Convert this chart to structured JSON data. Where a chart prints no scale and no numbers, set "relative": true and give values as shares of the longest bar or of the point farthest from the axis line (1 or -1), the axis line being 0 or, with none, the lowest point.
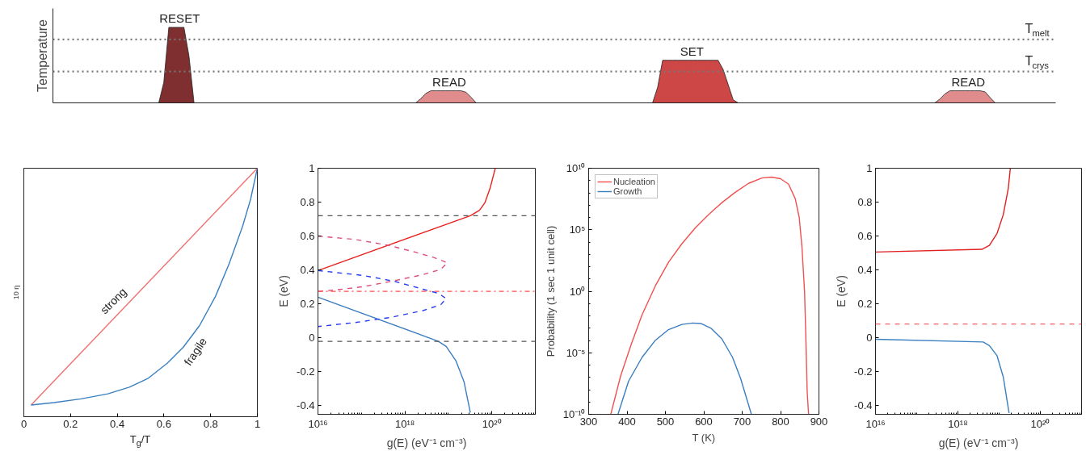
{
  "chart_data": [
    {
      "type": "area",
      "relative": true,
      "ylabel": "Temperature",
      "tick_labels": false,
      "categories": [
        null,
        null,
        null,
        null,
        null,
        null,
        null,
        null,
        null,
        null,
        null,
        null,
        null,
        null,
        null,
        null,
        null,
        null,
        null,
        null,
        null,
        null,
        null,
        null,
        null,
        null,
        null,
        null,
        null,
        null,
        null,
        null,
        null,
        null,
        null,
        null,
        null,
        null,
        null,
        null,
        null,
        null,
        null,
        null,
        null,
        null,
        null,
        null,
        null,
        null,
        null,
        null,
        null,
        null,
        null,
        null,
        null,
        null,
        null,
        null,
        null,
        null,
        null,
        null,
        null,
        null,
        null,
        null,
        null,
        null,
        null,
        null,
        null,
        null,
        null,
        null,
        null,
        null,
        null,
        null,
        null,
        null,
        null,
        null,
        null,
        null,
        null,
        null,
        null,
        null,
        null,
        null,
        null,
        null,
        null,
        null,
        null,
        null,
        null,
        null,
        null,
        null,
        null,
        null,
        null,
        null,
        null,
        null,
        null,
        null,
        null,
        null,
        null,
        null,
        null,
        null,
        null,
        null,
        null,
        null,
        null,
        null,
        null,
        null,
        null,
        null,
        null,
        null,
        null,
        null,
        null,
        null,
        null,
        null,
        null,
        null,
        null,
        null,
        null,
        null,
        null,
        null,
        null,
        null,
        null,
        null,
        null,
        null,
        null,
        null,
        null,
        null,
        null,
        null,
        null,
        null,
        null,
        null,
        null,
        null,
        null,
        null,
        null,
        null,
        null,
        null,
        null,
        null,
        null,
        null,
        null,
        null,
        null,
        null,
        null,
        null,
        null,
        null,
        null,
        null,
        null,
        null,
        null,
        null,
        null,
        null,
        null,
        null,
        null,
        null,
        null,
        null,
        null,
        null,
        null,
        null,
        null,
        null,
        null,
        null
      ],
      "series": [
        {
          "color": "#7f2f2f",
          "values": [
            null,
            null,
            null,
            null,
            null,
            null,
            null,
            null,
            null,
            null,
            null,
            null,
            null,
            null,
            null,
            null,
            null,
            null,
            null,
            null,
            null,
            0,
            0.27,
            1,
            1,
            1,
            1,
            0.62,
            0,
            null,
            null,
            null,
            null,
            null,
            null,
            null,
            null,
            null,
            null,
            null,
            null,
            null,
            null,
            null,
            null,
            null,
            null,
            null,
            null,
            null,
            null,
            null,
            null,
            null,
            null,
            null,
            null,
            null,
            null,
            null,
            null,
            null,
            null,
            null,
            null,
            null,
            null,
            null,
            null,
            null,
            null,
            null,
            null,
            null,
            null,
            null,
            null,
            null,
            null,
            null,
            null,
            null,
            null,
            null,
            null,
            null,
            null,
            null,
            null,
            null,
            null,
            null,
            null,
            null,
            null,
            null,
            null,
            null,
            null,
            null,
            null,
            null,
            null,
            null,
            null,
            null,
            null,
            null,
            null,
            null,
            null,
            null,
            null,
            null,
            null,
            null,
            null,
            null,
            null,
            null,
            null,
            null,
            null,
            null,
            null,
            null,
            null,
            null,
            null,
            null,
            null,
            null,
            null,
            null,
            null,
            null,
            null,
            null,
            null,
            null,
            null,
            null,
            null,
            null,
            null,
            null,
            null,
            null,
            null,
            null,
            null,
            null,
            null,
            null,
            null,
            null,
            null,
            null,
            null,
            null,
            null,
            null,
            null,
            null,
            null,
            null,
            null,
            null,
            null,
            null,
            null,
            null,
            null,
            null,
            null,
            null,
            null,
            null,
            null,
            null,
            null,
            null,
            null,
            null,
            null,
            null,
            null,
            null,
            null,
            null,
            null,
            null,
            null,
            null,
            null,
            null,
            null,
            null,
            null,
            null
          ]
        },
        {
          "color": "#e08c8c",
          "values": [
            null,
            null,
            null,
            null,
            null,
            null,
            null,
            null,
            null,
            null,
            null,
            null,
            null,
            null,
            null,
            null,
            null,
            null,
            null,
            null,
            null,
            null,
            null,
            null,
            null,
            null,
            null,
            null,
            null,
            null,
            null,
            null,
            null,
            null,
            null,
            null,
            null,
            null,
            null,
            null,
            null,
            null,
            null,
            null,
            null,
            null,
            null,
            null,
            null,
            null,
            null,
            null,
            null,
            null,
            null,
            null,
            null,
            null,
            null,
            null,
            null,
            null,
            null,
            null,
            null,
            null,
            null,
            null,
            null,
            null,
            null,
            null,
            0,
            0.056,
            0.125,
            0.16,
            0.16,
            0.16,
            0.16,
            0.16,
            0.16,
            0.16,
            0.14,
            0.073,
            0,
            null,
            null,
            null,
            null,
            null,
            null,
            null,
            null,
            null,
            null,
            null,
            null,
            null,
            null,
            null,
            null,
            null,
            null,
            null,
            null,
            null,
            null,
            null,
            null,
            null,
            null,
            null,
            null,
            null,
            null,
            null,
            null,
            null,
            null,
            null,
            null,
            null,
            null,
            null,
            null,
            null,
            null,
            null,
            null,
            null,
            null,
            null,
            null,
            null,
            null,
            null,
            null,
            null,
            null,
            null,
            null,
            null,
            null,
            null,
            null,
            null,
            null,
            null,
            null,
            null,
            null,
            null,
            null,
            null,
            null,
            null,
            null,
            null,
            null,
            null,
            null,
            null,
            null,
            null,
            null,
            null,
            null,
            null,
            null,
            null,
            null,
            null,
            null,
            null,
            null,
            null,
            null,
            null,
            null,
            null,
            null,
            null,
            null,
            null,
            null,
            null,
            null,
            null,
            null,
            null,
            null,
            null,
            null,
            null,
            null,
            null,
            null,
            null,
            null,
            null
          ]
        },
        {
          "color": "#cd4747",
          "values": [
            null,
            null,
            null,
            null,
            null,
            null,
            null,
            null,
            null,
            null,
            null,
            null,
            null,
            null,
            null,
            null,
            null,
            null,
            null,
            null,
            null,
            null,
            null,
            null,
            null,
            null,
            null,
            null,
            null,
            null,
            null,
            null,
            null,
            null,
            null,
            null,
            null,
            null,
            null,
            null,
            null,
            null,
            null,
            null,
            null,
            null,
            null,
            null,
            null,
            null,
            null,
            null,
            null,
            null,
            null,
            null,
            null,
            null,
            null,
            null,
            null,
            null,
            null,
            null,
            null,
            null,
            null,
            null,
            null,
            null,
            null,
            null,
            null,
            null,
            null,
            null,
            null,
            null,
            null,
            null,
            null,
            null,
            null,
            null,
            null,
            null,
            null,
            null,
            null,
            null,
            null,
            null,
            null,
            null,
            null,
            null,
            null,
            null,
            null,
            null,
            null,
            null,
            null,
            null,
            null,
            null,
            null,
            null,
            null,
            null,
            null,
            null,
            null,
            null,
            null,
            null,
            null,
            null,
            null,
            0,
            0.205,
            0.564,
            0.564,
            0.564,
            0.564,
            0.564,
            0.564,
            0.564,
            0.564,
            0.564,
            0.564,
            0.564,
            0.564,
            0.443,
            0.242,
            0.04,
            0,
            null,
            null,
            null,
            null,
            null,
            null,
            null,
            null,
            null,
            null,
            null,
            null,
            null,
            null,
            null,
            null,
            null,
            null,
            null,
            null,
            null,
            null,
            null,
            null,
            null,
            null,
            null,
            null,
            null,
            null,
            null,
            null,
            null,
            null,
            null,
            null,
            null,
            null,
            null,
            null,
            null,
            null,
            null,
            null,
            null,
            null,
            null,
            null,
            null,
            null,
            null,
            null,
            null,
            null,
            null,
            null,
            null,
            null,
            null,
            null,
            null,
            null,
            null
          ]
        },
        {
          "color": "#e08c8c",
          "values": [
            null,
            null,
            null,
            null,
            null,
            null,
            null,
            null,
            null,
            null,
            null,
            null,
            null,
            null,
            null,
            null,
            null,
            null,
            null,
            null,
            null,
            null,
            null,
            null,
            null,
            null,
            null,
            null,
            null,
            null,
            null,
            null,
            null,
            null,
            null,
            null,
            null,
            null,
            null,
            null,
            null,
            null,
            null,
            null,
            null,
            null,
            null,
            null,
            null,
            null,
            null,
            null,
            null,
            null,
            null,
            null,
            null,
            null,
            null,
            null,
            null,
            null,
            null,
            null,
            null,
            null,
            null,
            null,
            null,
            null,
            null,
            null,
            null,
            null,
            null,
            null,
            null,
            null,
            null,
            null,
            null,
            null,
            null,
            null,
            null,
            null,
            null,
            null,
            null,
            null,
            null,
            null,
            null,
            null,
            null,
            null,
            null,
            null,
            null,
            null,
            null,
            null,
            null,
            null,
            null,
            null,
            null,
            null,
            null,
            null,
            null,
            null,
            null,
            null,
            null,
            null,
            null,
            null,
            null,
            null,
            null,
            null,
            null,
            null,
            null,
            null,
            null,
            null,
            null,
            null,
            null,
            null,
            null,
            null,
            null,
            null,
            null,
            null,
            null,
            null,
            null,
            null,
            null,
            null,
            null,
            null,
            null,
            null,
            null,
            null,
            null,
            null,
            null,
            null,
            null,
            null,
            null,
            null,
            null,
            null,
            null,
            null,
            null,
            null,
            null,
            null,
            null,
            null,
            null,
            null,
            null,
            null,
            null,
            null,
            null,
            0,
            0.049,
            0.118,
            0.16,
            0.16,
            0.16,
            0.16,
            0.16,
            0.16,
            0.16,
            0.145,
            0.069,
            0,
            null,
            null,
            null,
            null,
            null,
            null,
            null,
            null,
            null,
            null,
            null,
            null
          ]
        }
      ],
      "ref_lines": [
        {
          "axis": "y",
          "value": 0.84,
          "label": "T$_{melt}$",
          "color": "#777777",
          "line_style": "dotted"
        },
        {
          "axis": "y",
          "value": 0.415,
          "label": "T$_{crys}$",
          "color": "#777777",
          "line_style": "dotted"
        }
      ],
      "annotations": [
        "RESET",
        "READ",
        "SET",
        "READ"
      ]
    },
    {
      "type": "line",
      "relative": true,
      "xlabel": "T$_{g}$/T",
      "ylabel": "10 η",
      "xlim": [
        0,
        1
      ],
      "xticks": [
        0,
        0.2,
        0.4,
        0.6,
        0.8,
        1
      ],
      "tick_labels": "x",
      "series": [
        {
          "name": "strong",
          "color": "#f07070",
          "x": [
            0.031,
            1
          ],
          "values": [
            0.047,
            1
          ]
        },
        {
          "name": "fragile",
          "color": "#3a80c0",
          "x": [
            0.031,
            0.129,
            0.245,
            0.36,
            0.452,
            0.533,
            0.614,
            0.683,
            0.752,
            0.821,
            0.879,
            0.937,
            0.971,
            1
          ],
          "values": [
            0.047,
            0.057,
            0.072,
            0.092,
            0.119,
            0.155,
            0.215,
            0.28,
            0.366,
            0.485,
            0.615,
            0.767,
            0.875,
            1
          ]
        }
      ]
    },
    {
      "type": "line",
      "log": "x",
      "xlabel": "g(E) (eV⁻¹ cm⁻³)",
      "ylabel": "E (eV)",
      "xlim": [
        1e+16,
        1e+21
      ],
      "ylim": [
        -0.45,
        1
      ],
      "xticks": [
        {
          "value": 1e+16,
          "label": "10¹⁶"
        },
        {
          "value": 1e+18,
          "label": "10¹⁸"
        },
        {
          "value": 1e+20,
          "label": "10²⁰"
        }
      ],
      "yticks": [
        -0.4,
        -0.2,
        0,
        0.2,
        0.4,
        0.6,
        0.8,
        1
      ],
      "series": [
        {
          "color": "#e8221e",
          "x": [
            1e+16,
            3.2e+19,
            5.2e+19,
            6.9e+19,
            9.1e+19,
            1.2e+20
          ],
          "values": [
            0.397,
            0.72,
            0.752,
            0.796,
            0.882,
            1
          ]
        },
        {
          "color": "#3b7dc0",
          "x": [
            1e+16,
            5.9e+18,
            8.9e+18,
            1.5e+19,
            2.3e+19,
            3.2e+19
          ],
          "values": [
            0.24,
            -0.02,
            -0.05,
            -0.136,
            -0.26,
            -0.44
          ]
        },
        {
          "color": "#e0507a",
          "line_style": "dashed",
          "x": [
            1e+16,
            7.3e+16,
            4.3e+17,
            1.7e+18,
            4.5e+18,
            9.5e+18,
            6.7e+18,
            2.6e+18,
            5.7e+17,
            1.1e+17,
            2.4e+16,
            1e+16
          ],
          "values": [
            0.6,
            0.58,
            0.545,
            0.506,
            0.475,
            0.443,
            0.404,
            0.373,
            0.337,
            0.302,
            0.282,
            0.274
          ]
        },
        {
          "color": "#2a3cf0",
          "line_style": "dashed",
          "x": [
            1e+16,
            1.1e+17,
            5.7e+17,
            2.6e+18,
            5.9e+18,
            8.9e+18,
            6.7e+18,
            2.6e+18,
            5e+17,
            7.3e+16,
            1e+16
          ],
          "values": [
            0.397,
            0.368,
            0.334,
            0.287,
            0.263,
            0.232,
            0.196,
            0.161,
            0.122,
            0.091,
            0.067
          ]
        }
      ],
      "ref_lines": [
        {
          "axis": "y",
          "value": 0.72,
          "color": "#555555",
          "line_style": "dashed"
        },
        {
          "axis": "y",
          "value": -0.02,
          "color": "#555555",
          "line_style": "dashed"
        },
        {
          "axis": "y",
          "value": 0.274,
          "color": "#ff4d4d",
          "line_style": "dashdot"
        }
      ]
    },
    {
      "type": "line",
      "log": "y",
      "xlabel": "T (K)",
      "ylabel": "Probability (1 sec 1 unit cell)",
      "xlim": [
        300,
        900
      ],
      "ylim": [
        1e-10,
        10000000000.0
      ],
      "xticks": [
        300,
        400,
        500,
        600,
        700,
        800,
        900
      ],
      "yticks": [
        {
          "value": 1e-10,
          "label": "10⁻¹⁰"
        },
        {
          "value": 1e-05,
          "label": "10⁻⁵"
        },
        {
          "value": 1,
          "label": "10⁰"
        },
        {
          "value": 100000.0,
          "label": "10⁵"
        },
        {
          "value": 10000000000.0,
          "label": "10¹⁰"
        }
      ],
      "legend": "top left",
      "series": [
        {
          "name": "Nucleation",
          "color": "#f05050",
          "x": [
            357.6,
            383.3,
            411.1,
            438.9,
            473.6,
            508.3,
            543.1,
            577.8,
            612.5,
            647.2,
            681.9,
            716.7,
            751.4,
            775.7,
            800,
            820.8,
            838.2,
            848.6,
            855.6,
            862.5,
            866,
            869.4,
            873
          ],
          "values": [
            1e-10,
            1.3e-07,
            5e-05,
            0.0115,
            2.7,
            234,
            7400,
            140000.0,
            1700000.0,
            16000000.0,
            110000000.0,
            590000000.0,
            1600000000.0,
            1900000000.0,
            1400000000.0,
            510000000.0,
            34000000.0,
            1000000.0,
            4600,
            1,
            0.00013,
            6.3e-09,
            1e-10
          ]
        },
        {
          "name": "Growth",
          "color": "#3a7dbf",
          "x": [
            376.4,
            404,
            439,
            474,
            508,
            543,
            571,
            592,
            619,
            647,
            675,
            696,
            724
          ],
          "values": [
            1e-10,
            4.9e-08,
            4.2e-06,
            0.000105,
            0.00076,
            0.002,
            0.0026,
            0.0024,
            0.00098,
            0.000135,
            4.2e-06,
            7.9e-08,
            1e-10
          ]
        }
      ]
    },
    {
      "type": "line",
      "log": "x",
      "xlabel": "g(E) (eV⁻¹ cm⁻³)",
      "ylabel": "E (eV)",
      "xlim": [
        1e+16,
        1e+21
      ],
      "ylim": [
        -0.45,
        1
      ],
      "xticks": [
        {
          "value": 1e+16,
          "label": "10¹⁶"
        },
        {
          "value": 1e+18,
          "label": "10¹⁸"
        },
        {
          "value": 1e+20,
          "label": "10²⁰"
        }
      ],
      "yticks": [
        -0.4,
        -0.2,
        0,
        0.2,
        0.4,
        0.6,
        0.8,
        1
      ],
      "series": [
        {
          "color": "#e02020",
          "x": [
            1e+16,
            3.8e+18,
            5.8e+18,
            8.9e+18,
            1.26e+19,
            1.67e+19,
            1.87e+19
          ],
          "values": [
            0.506,
            0.522,
            0.545,
            0.616,
            0.726,
            0.882,
            1
          ]
        },
        {
          "color": "#3a80c0",
          "x": [
            1e+16,
            4.1e+18,
            5.8e+18,
            8.9e+18,
            1.26e+19,
            1.74e+19
          ],
          "values": [
            -0.008,
            -0.024,
            -0.045,
            -0.105,
            -0.23,
            -0.442
          ]
        }
      ],
      "ref_lines": [
        {
          "axis": "y",
          "value": 0.0815,
          "color": "#f06060",
          "line_style": "dashed"
        }
      ]
    }
  ]
}
